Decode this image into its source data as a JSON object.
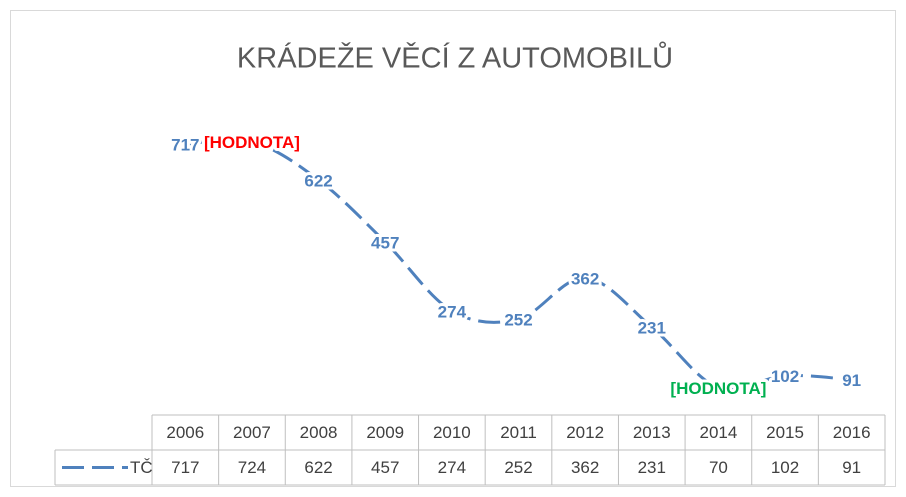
{
  "chart_data": {
    "type": "line",
    "title": "KRÁDEŽE VĚCÍ Z AUTOMOBILŮ",
    "categories": [
      "2006",
      "2007",
      "2008",
      "2009",
      "2010",
      "2011",
      "2012",
      "2013",
      "2014",
      "2015",
      "2016"
    ],
    "series": [
      {
        "name": "TČ",
        "color": "#4f81bd",
        "values": [
          717,
          724,
          622,
          457,
          274,
          252,
          362,
          231,
          70,
          102,
          91
        ],
        "value_labels": [
          "717",
          "[HODNOTA]",
          "622",
          "457",
          "274",
          "252",
          "362",
          "231",
          "[HODNOTA]",
          "102",
          "91"
        ],
        "value_label_colors": [
          "#4f81bd",
          "#ff0000",
          "#4f81bd",
          "#4f81bd",
          "#4f81bd",
          "#4f81bd",
          "#4f81bd",
          "#4f81bd",
          "#00b050",
          "#4f81bd",
          "#4f81bd"
        ]
      }
    ],
    "ylim": [
      0,
      800
    ],
    "data_table": true
  }
}
